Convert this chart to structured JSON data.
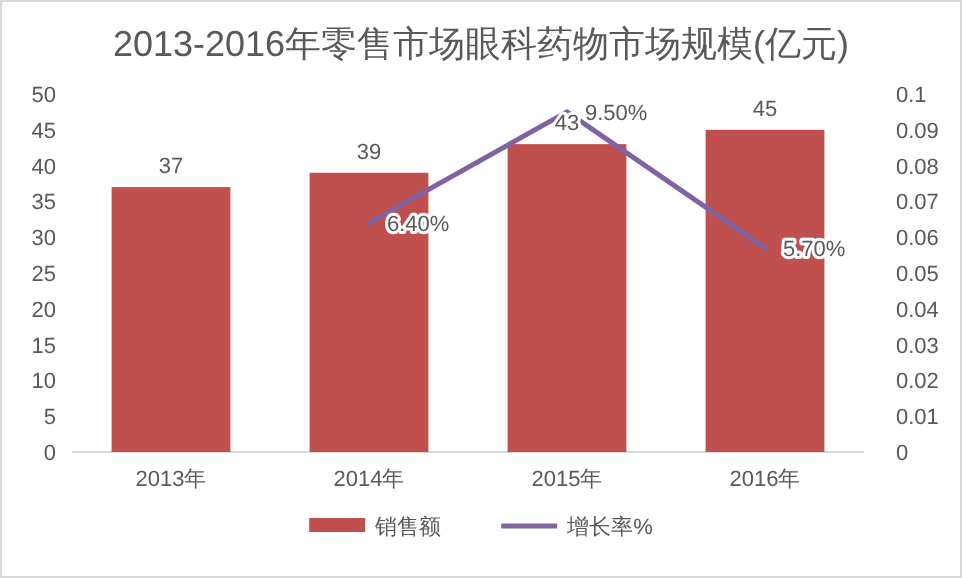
{
  "chart_data": {
    "type": "bar",
    "title": "2013-2016年零售市场眼科药物市场规模(亿元)",
    "categories": [
      "2013年",
      "2014年",
      "2015年",
      "2016年"
    ],
    "series": [
      {
        "name": "销售额",
        "color": "#c0504d",
        "values": [
          37,
          39,
          43,
          45
        ],
        "value_labels": [
          "37",
          "39",
          "43",
          "45"
        ]
      },
      {
        "name": "增长率%",
        "type": "line",
        "axis": "y2",
        "color": "#8064a2",
        "values": [
          null,
          0.064,
          0.095,
          0.057
        ],
        "value_labels": [
          null,
          "6.40%",
          "9.50%",
          "5.70%"
        ]
      }
    ],
    "ylim": [
      0,
      50
    ],
    "yticks": [
      0,
      5,
      10,
      15,
      20,
      25,
      30,
      35,
      40,
      45,
      50
    ],
    "y2lim": [
      0,
      0.1
    ],
    "y2ticks": [
      0,
      0.01,
      0.02,
      0.03,
      0.04,
      0.05,
      0.06,
      0.07,
      0.08,
      0.09,
      0.1
    ],
    "legend": "bottom"
  }
}
